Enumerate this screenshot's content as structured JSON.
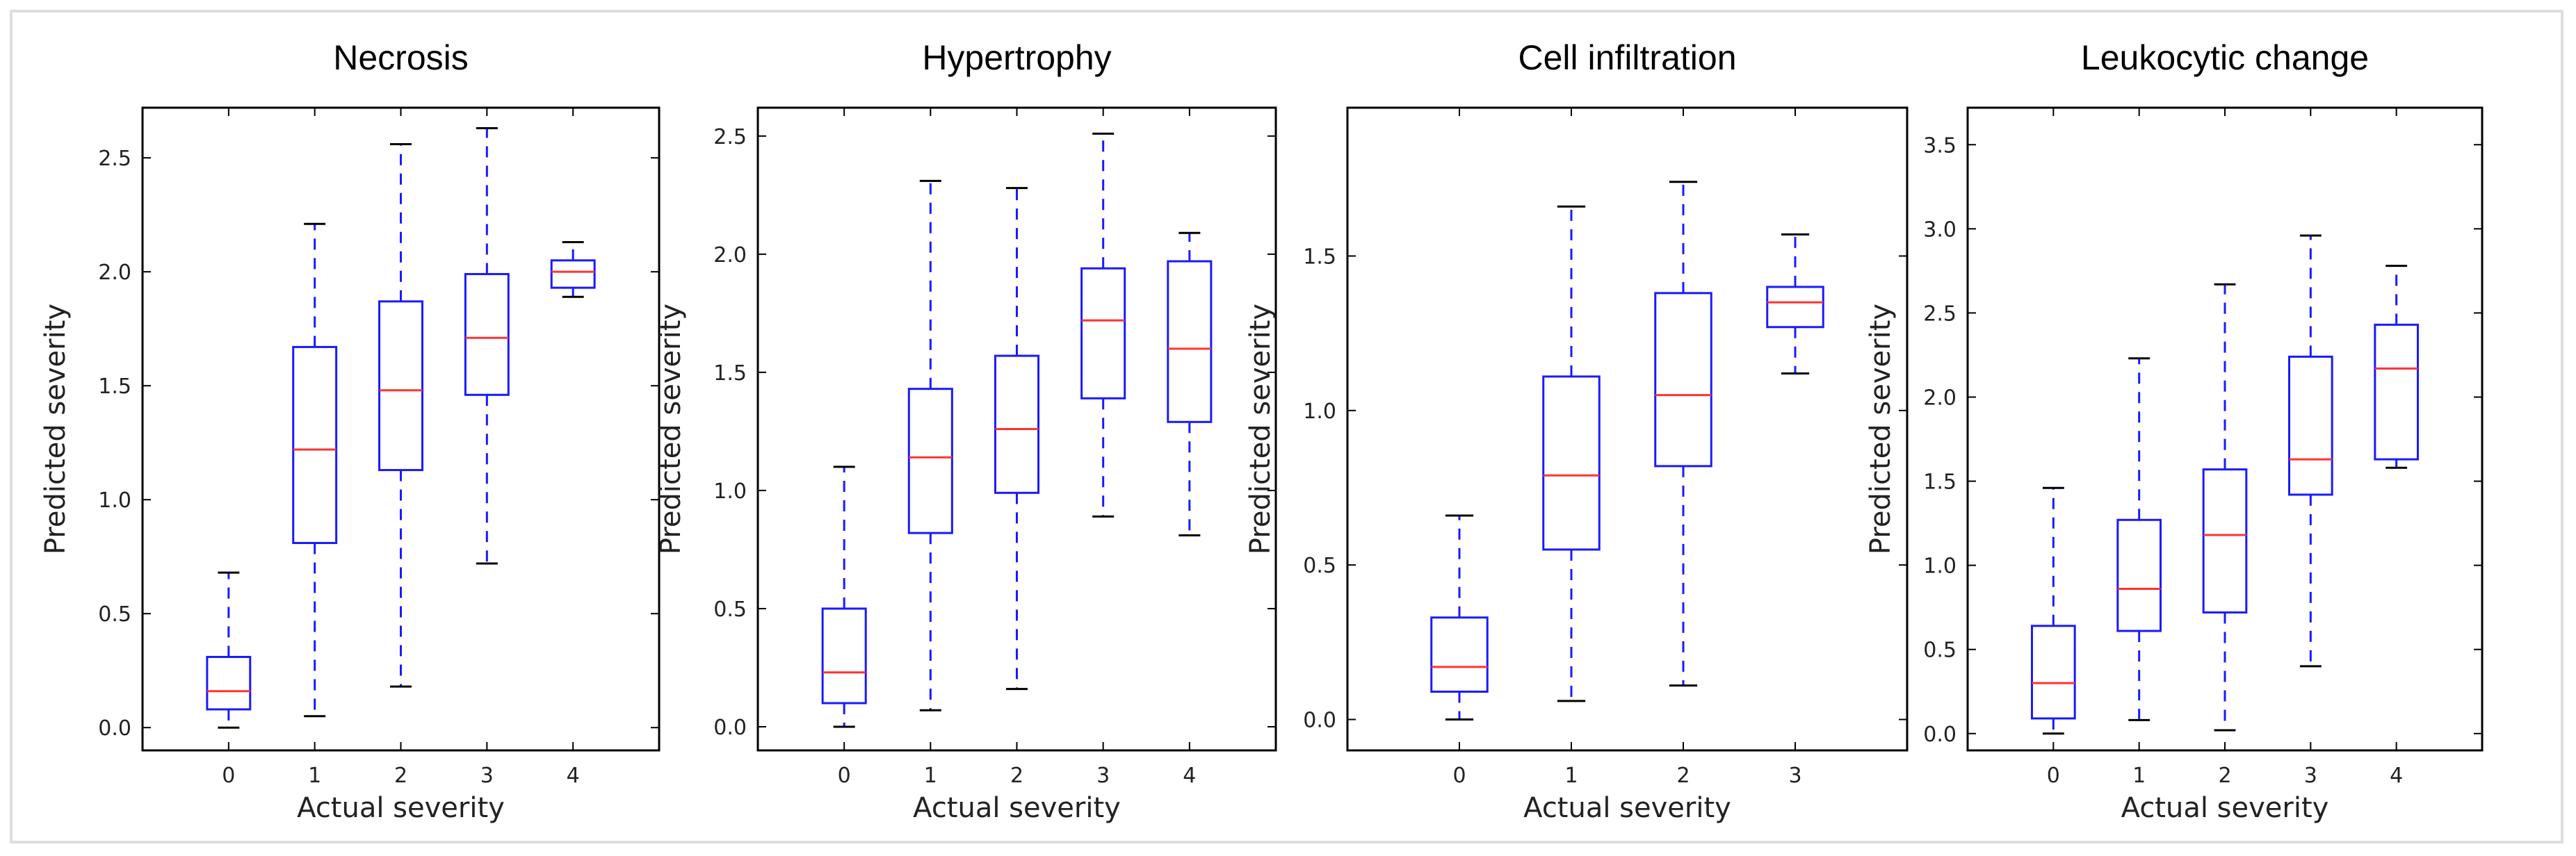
{
  "chart_data": [
    {
      "type": "box",
      "title": "Necrosis",
      "xlabel": "Actual severity",
      "ylabel": "Predicted severity",
      "ylim": [
        -0.1,
        2.72
      ],
      "yticks": [
        "0.0",
        "0.5",
        "1.0",
        "1.5",
        "2.0",
        "2.5"
      ],
      "categories": [
        "0",
        "1",
        "2",
        "3",
        "4"
      ],
      "boxes": [
        {
          "whislo": 0.0,
          "q1": 0.08,
          "med": 0.16,
          "q3": 0.31,
          "whishi": 0.68
        },
        {
          "whislo": 0.05,
          "q1": 0.81,
          "med": 1.22,
          "q3": 1.67,
          "whishi": 2.21
        },
        {
          "whislo": 0.18,
          "q1": 1.13,
          "med": 1.48,
          "q3": 1.87,
          "whishi": 2.56
        },
        {
          "whislo": 0.72,
          "q1": 1.46,
          "med": 1.71,
          "q3": 1.99,
          "whishi": 2.63
        },
        {
          "whislo": 1.89,
          "q1": 1.93,
          "med": 2.0,
          "q3": 2.05,
          "whishi": 2.13
        }
      ]
    },
    {
      "type": "box",
      "title": "Hypertrophy",
      "xlabel": "Actual severity",
      "ylabel": "Predicted severity",
      "ylim": [
        -0.1,
        2.62
      ],
      "yticks": [
        "0.0",
        "0.5",
        "1.0",
        "1.5",
        "2.0",
        "2.5"
      ],
      "categories": [
        "0",
        "1",
        "2",
        "3",
        "4"
      ],
      "boxes": [
        {
          "whislo": 0.0,
          "q1": 0.1,
          "med": 0.23,
          "q3": 0.5,
          "whishi": 1.1
        },
        {
          "whislo": 0.07,
          "q1": 0.82,
          "med": 1.14,
          "q3": 1.43,
          "whishi": 2.31
        },
        {
          "whislo": 0.16,
          "q1": 0.99,
          "med": 1.26,
          "q3": 1.57,
          "whishi": 2.28
        },
        {
          "whislo": 0.89,
          "q1": 1.39,
          "med": 1.72,
          "q3": 1.94,
          "whishi": 2.51
        },
        {
          "whislo": 0.81,
          "q1": 1.29,
          "med": 1.6,
          "q3": 1.97,
          "whishi": 2.09
        }
      ]
    },
    {
      "type": "box",
      "title": "Cell infiltration",
      "xlabel": "Actual severity",
      "ylabel": "Predicted severity",
      "ylim": [
        -0.1,
        1.98
      ],
      "yticks": [
        "0.0",
        "0.5",
        "1.0",
        "1.5"
      ],
      "categories": [
        "0",
        "1",
        "2",
        "3"
      ],
      "boxes": [
        {
          "whislo": 0.0,
          "q1": 0.09,
          "med": 0.17,
          "q3": 0.33,
          "whishi": 0.66
        },
        {
          "whislo": 0.06,
          "q1": 0.55,
          "med": 0.79,
          "q3": 1.11,
          "whishi": 1.66
        },
        {
          "whislo": 0.11,
          "q1": 0.82,
          "med": 1.05,
          "q3": 1.38,
          "whishi": 1.74
        },
        {
          "whislo": 1.12,
          "q1": 1.27,
          "med": 1.35,
          "q3": 1.4,
          "whishi": 1.57
        }
      ]
    },
    {
      "type": "box",
      "title": "Leukocytic change",
      "xlabel": "Actual severity",
      "ylabel": "Predicted severity",
      "ylim": [
        -0.1,
        3.72
      ],
      "yticks": [
        "0.0",
        "0.5",
        "1.0",
        "1.5",
        "2.0",
        "2.5",
        "3.0",
        "3.5"
      ],
      "categories": [
        "0",
        "1",
        "2",
        "3",
        "4"
      ],
      "boxes": [
        {
          "whislo": 0.0,
          "q1": 0.09,
          "med": 0.3,
          "q3": 0.64,
          "whishi": 1.46
        },
        {
          "whislo": 0.08,
          "q1": 0.61,
          "med": 0.86,
          "q3": 1.27,
          "whishi": 2.23
        },
        {
          "whislo": 0.02,
          "q1": 0.72,
          "med": 1.18,
          "q3": 1.57,
          "whishi": 2.67
        },
        {
          "whislo": 0.4,
          "q1": 1.42,
          "med": 1.63,
          "q3": 2.24,
          "whishi": 2.96
        },
        {
          "whislo": 1.58,
          "q1": 1.63,
          "med": 2.17,
          "q3": 2.43,
          "whishi": 2.78
        }
      ]
    }
  ],
  "colors": {
    "box": "#1a1aff",
    "median": "#ff3333",
    "cap": "#000000",
    "axis": "#000000"
  }
}
